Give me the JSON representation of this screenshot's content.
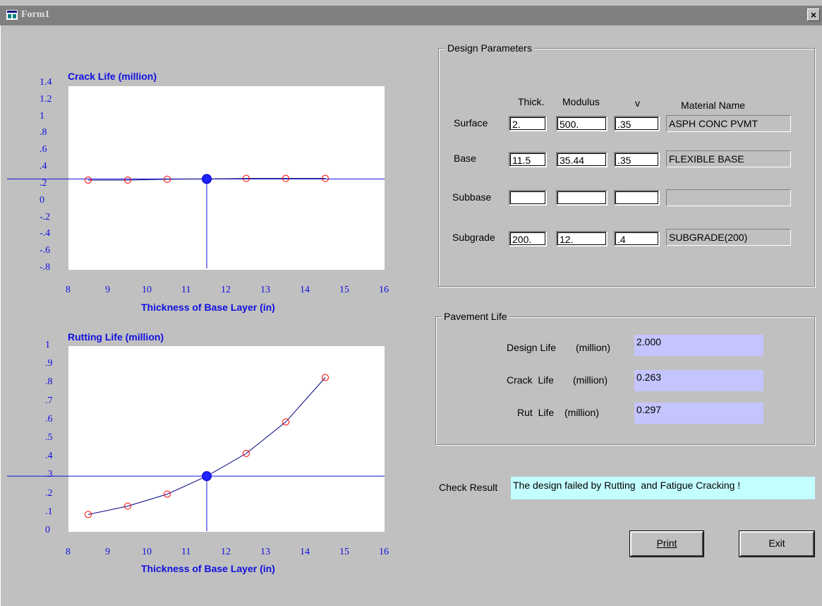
{
  "window": {
    "title": "Form1",
    "close_label": "×"
  },
  "crack_chart": {
    "title": "Crack Life (million)",
    "xlabel": "Thickness of Base Layer (in)",
    "yticks": [
      "1.4",
      "1.2",
      "1",
      ".8",
      ".6",
      ".4",
      ".2",
      "0",
      "-.2",
      "-.4",
      "-.6",
      "-.8"
    ],
    "xticks": [
      "8",
      "9",
      "10",
      "11",
      "12",
      "13",
      "14",
      "15",
      "16"
    ]
  },
  "rut_chart": {
    "title": "Rutting Life (million)",
    "xlabel": "Thickness of Base Layer (in)",
    "yticks": [
      "1",
      ".9",
      ".8",
      ".7",
      ".6",
      ".5",
      ".4",
      ".3",
      ".2",
      ".1",
      "0"
    ],
    "xticks": [
      "8",
      "9",
      "10",
      "11",
      "12",
      "13",
      "14",
      "15",
      "16"
    ]
  },
  "chart_data": [
    {
      "type": "line",
      "title": "Crack Life (million)",
      "xlabel": "Thickness of Base Layer (in)",
      "ylabel": "",
      "xlim": [
        8,
        16
      ],
      "ylim": [
        -0.8,
        1.4
      ],
      "x": [
        8.5,
        9.5,
        10.5,
        11.5,
        12.5,
        13.5,
        14.5
      ],
      "y": [
        0.25,
        0.25,
        0.26,
        0.263,
        0.27,
        0.27,
        0.27
      ],
      "design_point": {
        "x": 11.5,
        "y": 0.263
      },
      "grid": false
    },
    {
      "type": "line",
      "title": "Rutting Life (million)",
      "xlabel": "Thickness of Base Layer (in)",
      "ylabel": "",
      "xlim": [
        8,
        16
      ],
      "ylim": [
        0,
        1
      ],
      "x": [
        8.5,
        9.5,
        10.5,
        11.5,
        12.5,
        13.5,
        14.5
      ],
      "y": [
        0.09,
        0.135,
        0.2,
        0.297,
        0.42,
        0.59,
        0.83
      ],
      "design_point": {
        "x": 11.5,
        "y": 0.297
      },
      "grid": false
    }
  ],
  "design_params": {
    "legend": "Design Parameters",
    "headers": {
      "thick": "Thick.",
      "modulus": "Modulus",
      "v": "v",
      "material": "Material Name"
    },
    "rows": [
      {
        "label": "Surface",
        "thick": "2.",
        "modulus": "500.",
        "v": ".35",
        "material": "ASPH CONC PVMT"
      },
      {
        "label": "Base",
        "thick": "11.5",
        "modulus": "35.44",
        "v": ".35",
        "material": "FLEXIBLE BASE"
      },
      {
        "label": "Subbase",
        "thick": "",
        "modulus": "",
        "v": "",
        "material": ""
      },
      {
        "label": "Subgrade",
        "thick": "200.",
        "modulus": "12.",
        "v": ".4",
        "material": "SUBGRADE(200)"
      }
    ]
  },
  "pavement_life": {
    "legend": "Pavement Life",
    "rows": [
      {
        "label": "Design Life",
        "unit": "(million)",
        "value": "2.000"
      },
      {
        "label": "Crack  Life",
        "unit": "(million)",
        "value": "0.263"
      },
      {
        "label": "Rut  Life",
        "unit": "(million)",
        "value": "0.297"
      }
    ]
  },
  "check_result": {
    "label": "Check Result",
    "value": "The design failed by Rutting  and Fatigue Cracking !"
  },
  "buttons": {
    "print": "Print",
    "exit": "Exit"
  },
  "colors": {
    "axis": "#1010e0",
    "marker": "#ff0000",
    "line": "#000080",
    "design_point": "#2020ff",
    "life_box": "#c4c4ff",
    "result_box": "#c4ffff"
  }
}
